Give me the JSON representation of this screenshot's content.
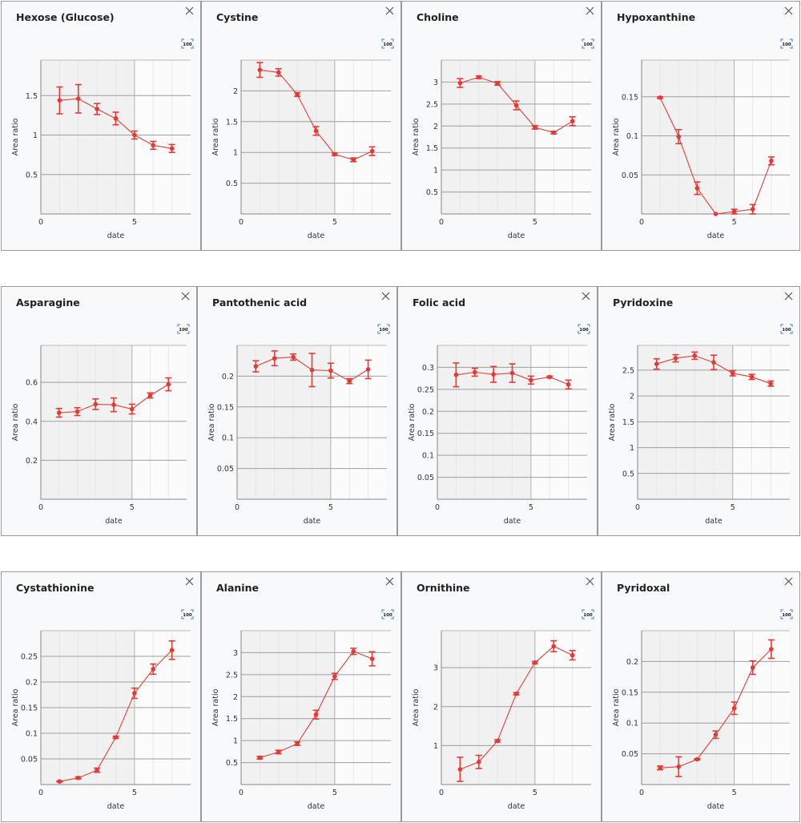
{
  "style": {
    "series_color": "#e53935",
    "line_color": "#e0413b",
    "plot_shade": "#f1f1f1",
    "plot_bg": "#fbfbfb",
    "grid_color": "#9e9e9e",
    "minor_grid_color": "#e4e4e4",
    "icon_blue": "#5b9bd5"
  },
  "icons": {
    "close": "close-icon",
    "reset_zoom": "zoom-100-icon",
    "reset_zoom_label": "100"
  },
  "chart_data": [
    {
      "type": "line",
      "title": "Hexose (Glucose)",
      "xlabel": "date",
      "ylabel": "Area ratio",
      "xlim": [
        0,
        8
      ],
      "ylim": [
        0,
        1.95
      ],
      "xticks": [
        0,
        5
      ],
      "yticks": [
        0.5,
        1,
        1.5
      ],
      "ytick_labels": [
        "0.5",
        "1",
        "1.5"
      ],
      "x": [
        1,
        2,
        3,
        4,
        5,
        6,
        7
      ],
      "y": [
        1.44,
        1.46,
        1.33,
        1.21,
        1.0,
        0.87,
        0.83
      ],
      "err": [
        0.17,
        0.18,
        0.07,
        0.08,
        0.05,
        0.05,
        0.05
      ],
      "shaded_region": [
        0,
        5
      ],
      "grid": true
    },
    {
      "type": "line",
      "title": "Cystine",
      "xlabel": "date",
      "ylabel": "Area ratio",
      "xlim": [
        0,
        8
      ],
      "ylim": [
        0,
        2.5
      ],
      "xticks": [
        0,
        5
      ],
      "yticks": [
        0.5,
        1,
        1.5,
        2
      ],
      "ytick_labels": [
        "0.5",
        "1",
        "1.5",
        "2"
      ],
      "x": [
        1,
        2,
        3,
        4,
        5,
        6,
        7
      ],
      "y": [
        2.34,
        2.3,
        1.94,
        1.35,
        0.97,
        0.88,
        1.02
      ],
      "err": [
        0.12,
        0.06,
        0.03,
        0.07,
        0.02,
        0.03,
        0.07
      ],
      "shaded_region": [
        0,
        5
      ],
      "grid": true
    },
    {
      "type": "line",
      "title": "Choline",
      "xlabel": "date",
      "ylabel": "Area ratio",
      "xlim": [
        0,
        8
      ],
      "ylim": [
        0,
        3.5
      ],
      "xticks": [
        0,
        5
      ],
      "yticks": [
        0.5,
        1,
        1.5,
        2,
        2.5,
        3
      ],
      "ytick_labels": [
        "0.5",
        "1",
        "1.5",
        "2",
        "2.5",
        "3"
      ],
      "x": [
        1,
        2,
        3,
        4,
        5,
        6,
        7
      ],
      "y": [
        2.98,
        3.11,
        2.97,
        2.47,
        1.97,
        1.85,
        2.11
      ],
      "err": [
        0.1,
        0.03,
        0.04,
        0.1,
        0.04,
        0.03,
        0.1
      ],
      "shaded_region": [
        0,
        5
      ],
      "grid": true
    },
    {
      "type": "line",
      "title": "Hypoxanthine",
      "xlabel": "date",
      "ylabel": "Area ratio",
      "xlim": [
        0,
        8
      ],
      "ylim": [
        0,
        0.197
      ],
      "xticks": [
        0,
        5
      ],
      "yticks": [
        0.05,
        0.1,
        0.15
      ],
      "ytick_labels": [
        "0.05",
        "0.1",
        "0.15"
      ],
      "x": [
        1,
        2,
        3,
        4,
        5,
        6,
        7
      ],
      "y": [
        0.149,
        0.099,
        0.033,
        0.0,
        0.003,
        0.006,
        0.068
      ],
      "err": [
        0.001,
        0.009,
        0.008,
        0.0,
        0.003,
        0.006,
        0.005
      ],
      "shaded_region": [
        0,
        5
      ],
      "grid": true
    },
    {
      "type": "line",
      "title": "Asparagine",
      "xlabel": "date",
      "ylabel": "Area ratio",
      "xlim": [
        0,
        8
      ],
      "ylim": [
        0,
        0.79
      ],
      "xticks": [
        0,
        5
      ],
      "yticks": [
        0.2,
        0.4,
        0.6
      ],
      "ytick_labels": [
        "0.2",
        "0.4",
        "0.6"
      ],
      "x": [
        1,
        2,
        3,
        4,
        5,
        6,
        7
      ],
      "y": [
        0.444,
        0.45,
        0.488,
        0.485,
        0.463,
        0.533,
        0.59
      ],
      "err": [
        0.022,
        0.02,
        0.027,
        0.035,
        0.025,
        0.013,
        0.033
      ],
      "shaded_region": [
        0,
        5
      ],
      "grid": true
    },
    {
      "type": "line",
      "title": "Pantothenic acid",
      "xlabel": "date",
      "ylabel": "Area ratio",
      "xlim": [
        0,
        8
      ],
      "ylim": [
        0,
        0.25
      ],
      "xticks": [
        0,
        5
      ],
      "yticks": [
        0.05,
        0.1,
        0.15,
        0.2
      ],
      "ytick_labels": [
        "0.05",
        "0.1",
        "0.15",
        "0.2"
      ],
      "x": [
        1,
        2,
        3,
        4,
        5,
        6,
        7
      ],
      "y": [
        0.216,
        0.229,
        0.231,
        0.21,
        0.209,
        0.192,
        0.211
      ],
      "err": [
        0.009,
        0.012,
        0.005,
        0.027,
        0.012,
        0.004,
        0.015
      ],
      "shaded_region": [
        0,
        5
      ],
      "grid": true
    },
    {
      "type": "line",
      "title": "Folic acid",
      "xlabel": "date",
      "ylabel": "Area ratio",
      "xlim": [
        0,
        8
      ],
      "ylim": [
        0,
        0.35
      ],
      "xticks": [
        0,
        5
      ],
      "yticks": [
        0.05,
        0.1,
        0.15,
        0.2,
        0.25,
        0.3
      ],
      "ytick_labels": [
        "0.05",
        "0.1",
        "0.15",
        "0.2",
        "0.25",
        "0.3"
      ],
      "x": [
        1,
        2,
        3,
        4,
        5,
        6,
        7
      ],
      "y": [
        0.283,
        0.289,
        0.284,
        0.287,
        0.271,
        0.278,
        0.261
      ],
      "err": [
        0.027,
        0.009,
        0.018,
        0.021,
        0.009,
        0.002,
        0.01
      ],
      "shaded_region": [
        0,
        5
      ],
      "grid": true
    },
    {
      "type": "line",
      "title": "Pyridoxine",
      "xlabel": "date",
      "ylabel": "Area ratio",
      "xlim": [
        0,
        8
      ],
      "ylim": [
        0,
        2.98
      ],
      "xticks": [
        0,
        5
      ],
      "yticks": [
        0.5,
        1,
        1.5,
        2,
        2.5
      ],
      "ytick_labels": [
        "0.5",
        "1",
        "1.5",
        "2",
        "2.5"
      ],
      "x": [
        1,
        2,
        3,
        4,
        5,
        6,
        7
      ],
      "y": [
        2.62,
        2.73,
        2.78,
        2.65,
        2.44,
        2.37,
        2.24
      ],
      "err": [
        0.1,
        0.07,
        0.07,
        0.14,
        0.05,
        0.05,
        0.05
      ],
      "shaded_region": [
        0,
        5
      ],
      "grid": true
    },
    {
      "type": "line",
      "title": "Cystathionine",
      "xlabel": "date",
      "ylabel": "Area ratio",
      "xlim": [
        0,
        8
      ],
      "ylim": [
        0,
        0.3
      ],
      "xticks": [
        0,
        5
      ],
      "yticks": [
        0.05,
        0.1,
        0.15,
        0.2,
        0.25
      ],
      "ytick_labels": [
        "0.05",
        "0.1",
        "0.15",
        "0.2",
        "0.25"
      ],
      "x": [
        1,
        2,
        3,
        4,
        5,
        6,
        7
      ],
      "y": [
        0.006,
        0.013,
        0.028,
        0.092,
        0.178,
        0.225,
        0.262
      ],
      "err": [
        0.001,
        0.002,
        0.004,
        0.002,
        0.01,
        0.01,
        0.018
      ],
      "shaded_region": [
        0,
        5
      ],
      "grid": true
    },
    {
      "type": "line",
      "title": "Alanine",
      "xlabel": "date",
      "ylabel": "Area ratio",
      "xlim": [
        0,
        8
      ],
      "ylim": [
        0,
        3.5
      ],
      "xticks": [
        0,
        5
      ],
      "yticks": [
        0.5,
        1,
        1.5,
        2,
        2.5,
        3
      ],
      "ytick_labels": [
        "0.5",
        "1",
        "1.5",
        "2",
        "2.5",
        "3"
      ],
      "x": [
        1,
        2,
        3,
        4,
        5,
        6,
        7
      ],
      "y": [
        0.61,
        0.74,
        0.93,
        1.59,
        2.46,
        3.03,
        2.86
      ],
      "err": [
        0.03,
        0.04,
        0.04,
        0.1,
        0.07,
        0.07,
        0.16
      ],
      "shaded_region": [
        0,
        5
      ],
      "grid": true
    },
    {
      "type": "line",
      "title": "Ornithine",
      "xlabel": "date",
      "ylabel": "Area ratio",
      "xlim": [
        0,
        8
      ],
      "ylim": [
        0,
        3.95
      ],
      "xticks": [
        0,
        5
      ],
      "yticks": [
        1,
        2,
        3
      ],
      "ytick_labels": [
        "1",
        "2",
        "3"
      ],
      "x": [
        1,
        2,
        3,
        4,
        5,
        6,
        7
      ],
      "y": [
        0.39,
        0.58,
        1.12,
        2.33,
        3.13,
        3.55,
        3.32
      ],
      "err": [
        0.31,
        0.17,
        0.03,
        0.03,
        0.03,
        0.14,
        0.12
      ],
      "shaded_region": [
        0,
        5
      ],
      "grid": true
    },
    {
      "type": "line",
      "title": "Pyridoxal",
      "xlabel": "date",
      "ylabel": "Area ratio",
      "xlim": [
        0,
        8
      ],
      "ylim": [
        0,
        0.25
      ],
      "xticks": [
        0,
        5
      ],
      "yticks": [
        0.05,
        0.1,
        0.15,
        0.2
      ],
      "ytick_labels": [
        "0.05",
        "0.1",
        "0.15",
        "0.2"
      ],
      "x": [
        1,
        2,
        3,
        4,
        5,
        6,
        7
      ],
      "y": [
        0.027,
        0.029,
        0.041,
        0.081,
        0.124,
        0.19,
        0.22
      ],
      "err": [
        0.003,
        0.016,
        0.001,
        0.006,
        0.01,
        0.011,
        0.015
      ],
      "shaded_region": [
        0,
        5
      ],
      "grid": true
    }
  ]
}
